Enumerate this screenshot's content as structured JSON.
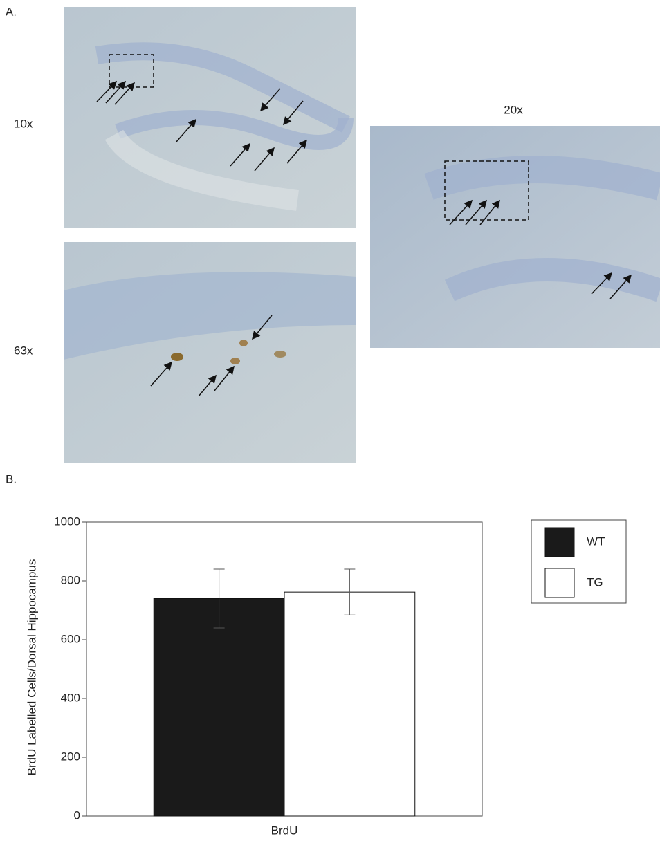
{
  "panel_a": {
    "label": "A.",
    "images": [
      {
        "label": "10x"
      },
      {
        "label": "20x"
      },
      {
        "label": "63x"
      }
    ]
  },
  "panel_b": {
    "label": "B."
  },
  "chart_data": {
    "type": "bar",
    "y_label": "BrdU Labelled Cells/Dorsal Hippocampus",
    "categories": [
      "BrdU"
    ],
    "series": [
      {
        "name": "WT",
        "color": "#1a1a1a",
        "values": [
          740
        ],
        "errors": [
          100
        ]
      },
      {
        "name": "TG",
        "color": "#ffffff",
        "values": [
          762
        ],
        "errors": [
          78
        ]
      }
    ],
    "ylim": [
      0,
      1000
    ],
    "yticks": [
      0,
      200,
      400,
      600,
      800,
      1000
    ],
    "legend": "right"
  }
}
